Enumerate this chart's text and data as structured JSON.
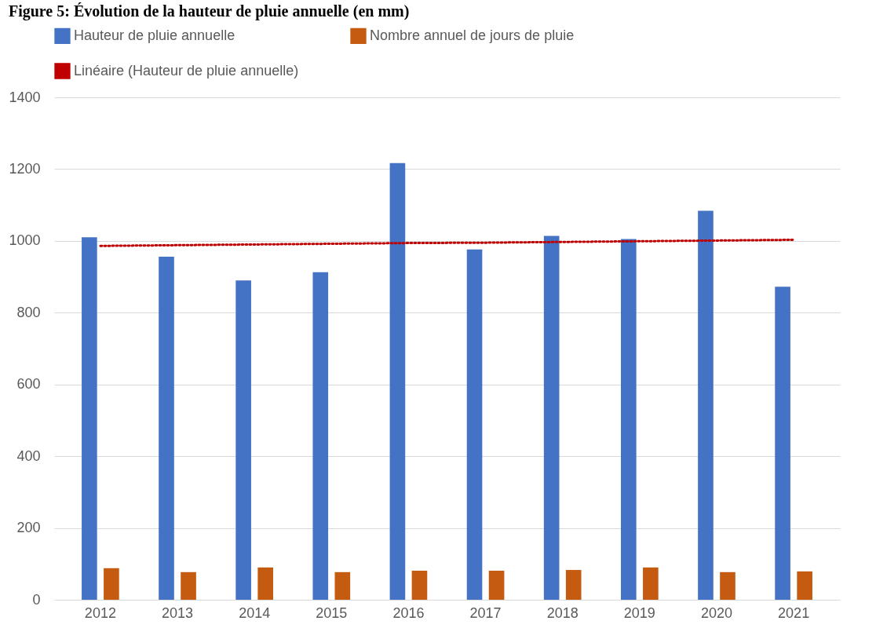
{
  "chart_data": {
    "type": "bar",
    "title": "Figure 5: Évolution de la hauteur de pluie annuelle (en mm)",
    "categories": [
      "2012",
      "2013",
      "2014",
      "2015",
      "2016",
      "2017",
      "2018",
      "2019",
      "2020",
      "2021"
    ],
    "series": [
      {
        "name": "Hauteur de pluie annuelle",
        "color": "#4472c4",
        "values": [
          1010,
          956,
          890,
          913,
          1217,
          976,
          1014,
          1005,
          1084,
          872
        ]
      },
      {
        "name": "Nombre annuel de jours de pluie",
        "color": "#c55a11",
        "values": [
          88,
          77,
          90,
          77,
          81,
          81,
          83,
          90,
          77,
          79
        ]
      },
      {
        "name": "Linéaire (Hauteur de pluie annuelle)",
        "type": "line",
        "color": "#c00000",
        "line_style": "dotted",
        "marker": "none",
        "values": [
          986,
          988,
          990,
          992,
          994,
          995,
          997,
          999,
          1001,
          1003
        ]
      }
    ],
    "ylim": [
      0,
      1400
    ],
    "yticks": [
      0,
      200,
      400,
      600,
      800,
      1000,
      1200,
      1400
    ],
    "grid": "y",
    "legend": "top"
  }
}
